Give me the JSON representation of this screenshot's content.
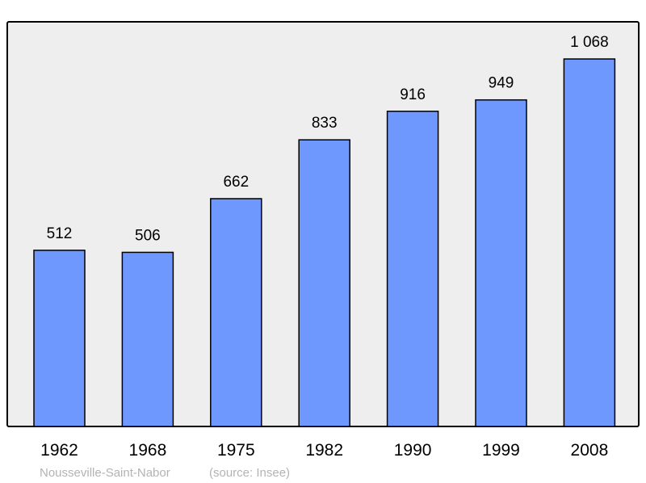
{
  "chart_data": {
    "type": "bar",
    "categories": [
      "1962",
      "1968",
      "1975",
      "1982",
      "1990",
      "1999",
      "2008"
    ],
    "values": [
      512,
      506,
      662,
      833,
      916,
      949,
      1068
    ],
    "data_labels": [
      "512",
      "506",
      "662",
      "833",
      "916",
      "949",
      "1 068"
    ],
    "title": "",
    "xlabel": "",
    "ylabel": "",
    "ylim": [
      0,
      1176
    ],
    "grid": false,
    "colors": {
      "bar": "#6f98ff",
      "bar_stroke": "#000000",
      "plot_bg": "#eeeeee",
      "footer_text": "#b3b3b3"
    }
  },
  "footer": {
    "place": "Nousseville-Saint-Nabor",
    "source": "(source: Insee)"
  }
}
